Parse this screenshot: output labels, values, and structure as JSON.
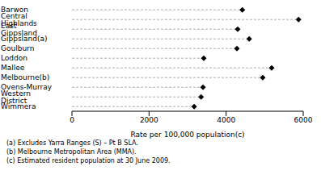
{
  "chart_data": {
    "type": "dot",
    "orientation": "horizontal",
    "categories": [
      "Barwon",
      "Central Highlands",
      "East Gippsland",
      "Gippsland(a)",
      "Goulburn",
      "Loddon",
      "Mallee",
      "Melbourne(b)",
      "Ovens-Murray",
      "Western District",
      "Wimmera"
    ],
    "values": [
      4420,
      5880,
      4300,
      4600,
      4280,
      3420,
      5180,
      4950,
      3400,
      3350,
      3170
    ],
    "color": "#000000",
    "marker": "diamond",
    "line_style": "dashed",
    "xlabel": "Rate per 100,000 population(c)",
    "xlim": [
      0,
      6000
    ],
    "xticks": [
      0,
      2000,
      4000,
      6000
    ],
    "grid": false,
    "notes": [
      "(a) Excludes Yarra Ranges (S) – Pt B SLA.",
      "(b) Melbourne Metropolitan Area (MMA).",
      "(c) Estimated resident population at 30 June 2009."
    ]
  }
}
